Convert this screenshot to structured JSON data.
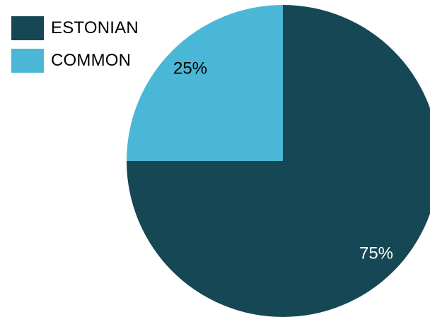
{
  "chart_data": {
    "type": "pie",
    "categories": [
      "ESTONIAN",
      "COMMON"
    ],
    "values": [
      75,
      25
    ],
    "value_labels": [
      "75%",
      "25%"
    ],
    "colors": [
      "#154754",
      "#4AB7D6"
    ],
    "label_colors": [
      "#ffffff",
      "#000000"
    ],
    "legend": {
      "position": "top-left",
      "entries": [
        "ESTONIAN",
        "COMMON"
      ]
    },
    "title": ""
  }
}
